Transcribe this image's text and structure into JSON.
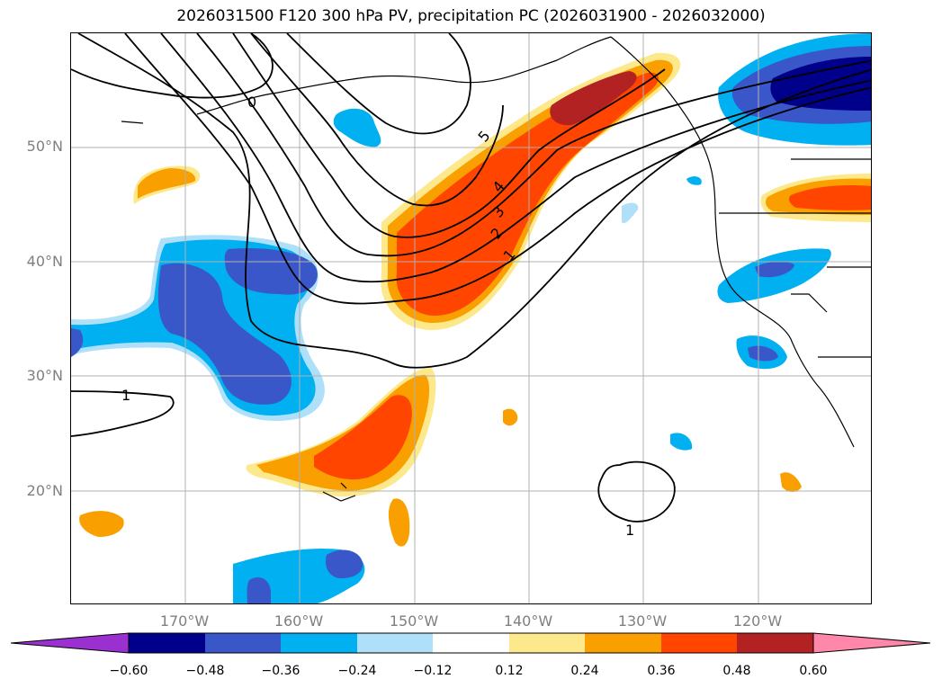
{
  "title": "2026031500 F120 300 hPa PV, precipitation PC (2026031900 - 2026032000)",
  "lat_labels": [
    {
      "text": "50°N",
      "value": 50
    },
    {
      "text": "40°N",
      "value": 40
    },
    {
      "text": "30°N",
      "value": 30
    },
    {
      "text": "20°N",
      "value": 20
    }
  ],
  "lon_labels": [
    {
      "text": "170°W",
      "value": -170
    },
    {
      "text": "160°W",
      "value": -160
    },
    {
      "text": "150°W",
      "value": -150
    },
    {
      "text": "140°W",
      "value": -140
    },
    {
      "text": "130°W",
      "value": -130
    },
    {
      "text": "120°W",
      "value": -120
    }
  ],
  "colorbar": {
    "ticks": [
      "−0.60",
      "−0.48",
      "−0.36",
      "−0.24",
      "−0.12",
      "0.12",
      "0.24",
      "0.36",
      "0.48",
      "0.60"
    ],
    "colors": {
      "lt_-0.60": "#9b30d0",
      "-0.60_-0.48": "#00008b",
      "-0.48_-0.36": "#3a57c9",
      "-0.36_-0.24": "#00b0f0",
      "-0.24_-0.12": "#aee0fa",
      "-0.12_0.12": "#ffffff",
      "0.12_0.24": "#fde98b",
      "0.24_0.36": "#f9a000",
      "0.36_0.48": "#ff4500",
      "0.48_0.60": "#b22222",
      "gt_0.60": "#ff88aa"
    }
  },
  "contour_labels": [
    "1",
    "1",
    "1",
    "2",
    "3",
    "4",
    "5",
    "0"
  ]
}
